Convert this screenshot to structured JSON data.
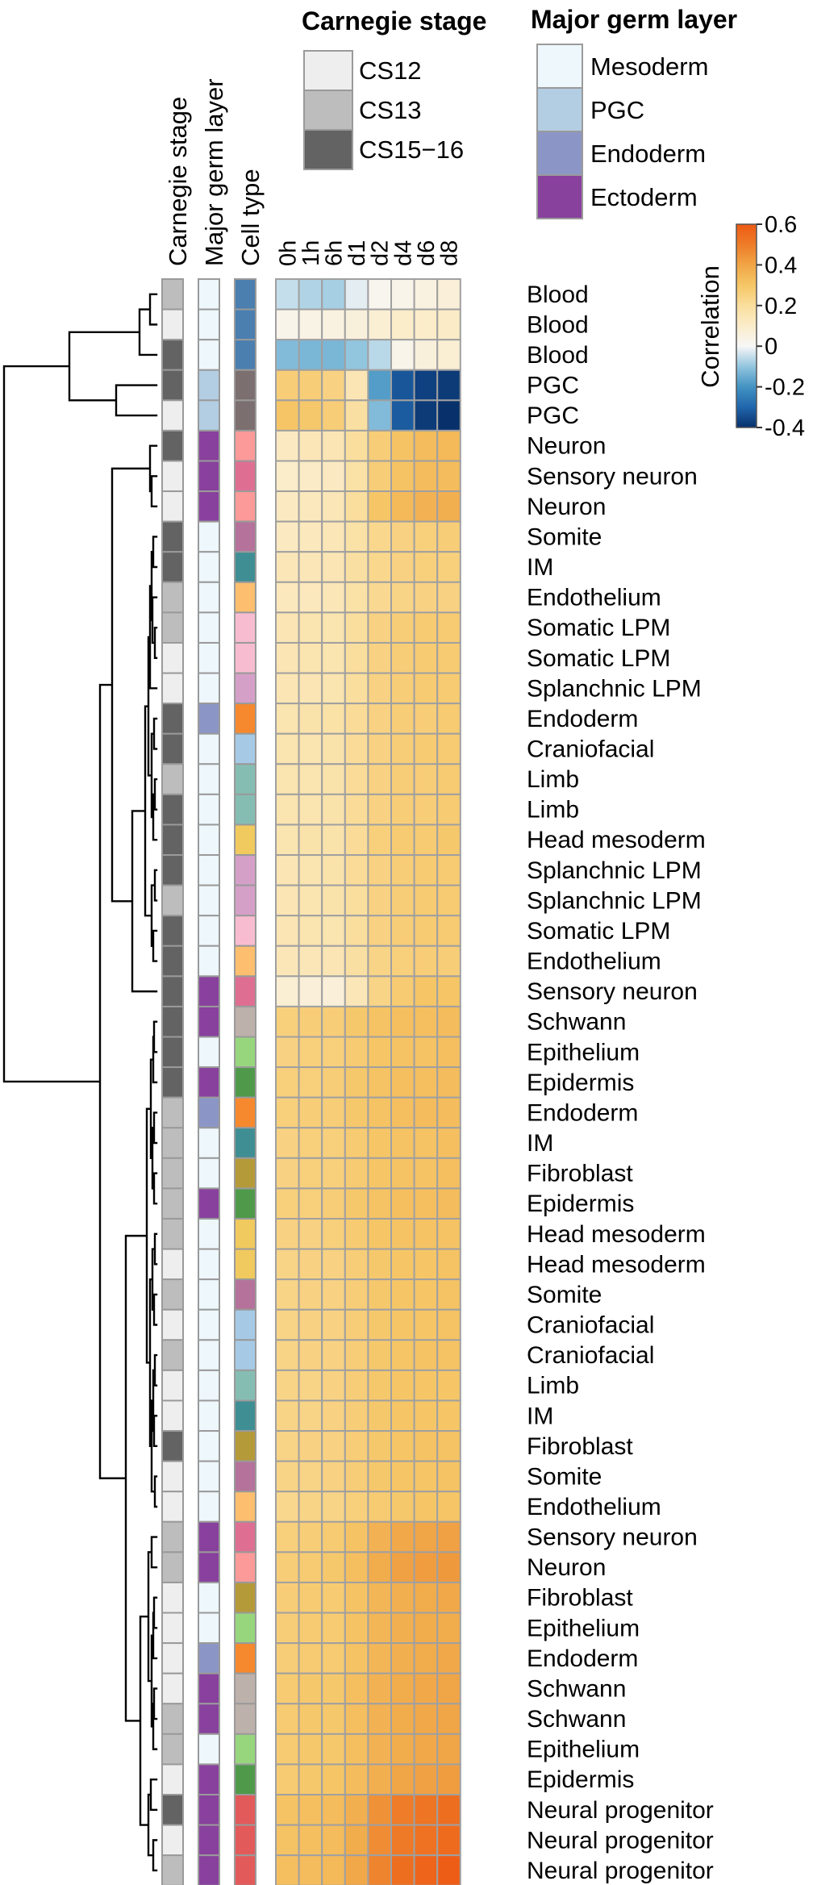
{
  "chart_data": {
    "type": "heatmap",
    "columns": [
      "0h",
      "1h",
      "6h",
      "d1",
      "d2",
      "d4",
      "d6",
      "d8"
    ],
    "annotation_headers": [
      "Carnegie stage",
      "Major germ layer",
      "Cell type"
    ],
    "legends": {
      "carnegie_stage": {
        "title": "Carnegie stage",
        "entries": [
          {
            "label": "CS12",
            "color": "#eeeeee"
          },
          {
            "label": "CS13",
            "color": "#bdbdbd"
          },
          {
            "label": "CS15−16",
            "color": "#636363"
          }
        ]
      },
      "germ_layer": {
        "title": "Major germ layer",
        "entries": [
          {
            "label": "Mesoderm",
            "color": "#eef7fb"
          },
          {
            "label": "PGC",
            "color": "#b3cde3"
          },
          {
            "label": "Endoderm",
            "color": "#8c96c6"
          },
          {
            "label": "Ectoderm",
            "color": "#88419d"
          }
        ]
      },
      "correlation": {
        "title": "Correlation",
        "range": [
          -0.4,
          0.6
        ],
        "ticks": [
          0.6,
          0.4,
          0.2,
          0,
          -0.2,
          -0.4
        ],
        "tick_labels": [
          "0.6",
          "0.4",
          "0.2",
          "0",
          "-0.2",
          "-0.4"
        ]
      }
    },
    "stage_colors": {
      "CS12": "#eeeeee",
      "CS13": "#bdbdbd",
      "CS15-16": "#636363"
    },
    "layer_colors": {
      "Mesoderm": "#eef7fb",
      "PGC": "#b3cde3",
      "Endoderm": "#8c96c6",
      "Ectoderm": "#88419d"
    },
    "celltype_colors": {
      "Blood": "#4a7fb0",
      "PGC": "#7c6f6f",
      "Neuron": "#fb9a99",
      "Sensory neuron": "#de6f93",
      "Somite": "#b5729b",
      "IM": "#3f8e93",
      "Endothelium": "#fdbf6f",
      "Somatic LPM": "#f8bcd0",
      "Splanchnic LPM": "#d5a0c7",
      "Endoderm": "#f6882d",
      "Craniofacial": "#a6cae6",
      "Limb": "#86bdb3",
      "Head mesoderm": "#f0c95f",
      "Schwann": "#bdb1ac",
      "Epithelium": "#98d67e",
      "Epidermis": "#4f9a4a",
      "Fibroblast": "#b59a3a",
      "Neural progenitor": "#e35a5a"
    },
    "rows": [
      {
        "label": "Blood",
        "stage": "CS13",
        "layer": "Mesoderm",
        "values": [
          -0.05,
          -0.07,
          -0.08,
          -0.02,
          0.02,
          0.03,
          0.05,
          0.07
        ]
      },
      {
        "label": "Blood",
        "stage": "CS12",
        "layer": "Mesoderm",
        "values": [
          0.03,
          0.04,
          0.05,
          0.06,
          0.08,
          0.1,
          0.1,
          0.11
        ]
      },
      {
        "label": "Blood",
        "stage": "CS15-16",
        "layer": "Mesoderm",
        "values": [
          -0.12,
          -0.13,
          -0.13,
          -0.1,
          -0.06,
          0.03,
          0.06,
          0.08
        ]
      },
      {
        "label": "PGC",
        "stage": "CS15-16",
        "layer": "PGC",
        "values": [
          0.27,
          0.27,
          0.25,
          0.15,
          -0.18,
          -0.33,
          -0.37,
          -0.38
        ]
      },
      {
        "label": "PGC",
        "stage": "CS12",
        "layer": "PGC",
        "values": [
          0.3,
          0.29,
          0.27,
          0.19,
          -0.12,
          -0.32,
          -0.38,
          -0.4
        ]
      },
      {
        "label": "Neuron",
        "stage": "CS15-16",
        "layer": "Ectoderm",
        "values": [
          0.12,
          0.14,
          0.15,
          0.2,
          0.27,
          0.31,
          0.33,
          0.34
        ]
      },
      {
        "label": "Sensory neuron",
        "stage": "CS12",
        "layer": "Ectoderm",
        "values": [
          0.1,
          0.11,
          0.12,
          0.18,
          0.27,
          0.31,
          0.33,
          0.33
        ]
      },
      {
        "label": "Neuron",
        "stage": "CS12",
        "layer": "Ectoderm",
        "values": [
          0.12,
          0.13,
          0.14,
          0.2,
          0.3,
          0.34,
          0.36,
          0.37
        ]
      },
      {
        "label": "Somite",
        "stage": "CS15-16",
        "layer": "Mesoderm",
        "values": [
          0.12,
          0.13,
          0.14,
          0.18,
          0.23,
          0.25,
          0.26,
          0.27
        ]
      },
      {
        "label": "IM",
        "stage": "CS15-16",
        "layer": "Mesoderm",
        "values": [
          0.14,
          0.14,
          0.15,
          0.19,
          0.23,
          0.25,
          0.26,
          0.26
        ]
      },
      {
        "label": "Endothelium",
        "stage": "CS13",
        "layer": "Mesoderm",
        "values": [
          0.13,
          0.13,
          0.14,
          0.18,
          0.22,
          0.24,
          0.25,
          0.25
        ]
      },
      {
        "label": "Somatic LPM",
        "stage": "CS13",
        "layer": "Mesoderm",
        "values": [
          0.15,
          0.16,
          0.16,
          0.2,
          0.25,
          0.27,
          0.28,
          0.28
        ]
      },
      {
        "label": "Somatic LPM",
        "stage": "CS12",
        "layer": "Mesoderm",
        "values": [
          0.15,
          0.16,
          0.16,
          0.2,
          0.25,
          0.27,
          0.28,
          0.28
        ]
      },
      {
        "label": "Splanchnic LPM",
        "stage": "CS12",
        "layer": "Mesoderm",
        "values": [
          0.15,
          0.15,
          0.16,
          0.2,
          0.25,
          0.27,
          0.28,
          0.28
        ]
      },
      {
        "label": "Endoderm",
        "stage": "CS15-16",
        "layer": "Endoderm",
        "values": [
          0.16,
          0.17,
          0.18,
          0.21,
          0.25,
          0.27,
          0.27,
          0.28
        ]
      },
      {
        "label": "Craniofacial",
        "stage": "CS15-16",
        "layer": "Mesoderm",
        "values": [
          0.16,
          0.16,
          0.17,
          0.21,
          0.25,
          0.27,
          0.28,
          0.28
        ]
      },
      {
        "label": "Limb",
        "stage": "CS13",
        "layer": "Mesoderm",
        "values": [
          0.16,
          0.16,
          0.17,
          0.21,
          0.25,
          0.27,
          0.27,
          0.28
        ]
      },
      {
        "label": "Limb",
        "stage": "CS15-16",
        "layer": "Mesoderm",
        "values": [
          0.16,
          0.16,
          0.17,
          0.21,
          0.25,
          0.27,
          0.27,
          0.28
        ]
      },
      {
        "label": "Head mesoderm",
        "stage": "CS15-16",
        "layer": "Mesoderm",
        "values": [
          0.16,
          0.17,
          0.17,
          0.21,
          0.26,
          0.28,
          0.28,
          0.29
        ]
      },
      {
        "label": "Splanchnic LPM",
        "stage": "CS15-16",
        "layer": "Mesoderm",
        "values": [
          0.15,
          0.16,
          0.17,
          0.21,
          0.25,
          0.27,
          0.28,
          0.28
        ]
      },
      {
        "label": "Splanchnic LPM",
        "stage": "CS13",
        "layer": "Mesoderm",
        "values": [
          0.15,
          0.16,
          0.17,
          0.2,
          0.25,
          0.27,
          0.28,
          0.28
        ]
      },
      {
        "label": "Somatic LPM",
        "stage": "CS15-16",
        "layer": "Mesoderm",
        "values": [
          0.15,
          0.16,
          0.16,
          0.2,
          0.25,
          0.27,
          0.28,
          0.28
        ]
      },
      {
        "label": "Endothelium",
        "stage": "CS15-16",
        "layer": "Mesoderm",
        "values": [
          0.14,
          0.14,
          0.15,
          0.19,
          0.24,
          0.26,
          0.27,
          0.27
        ]
      },
      {
        "label": "Sensory neuron",
        "stage": "CS15-16",
        "layer": "Ectoderm",
        "values": [
          0.08,
          0.07,
          0.07,
          0.14,
          0.24,
          0.28,
          0.3,
          0.3
        ]
      },
      {
        "label": "Schwann",
        "stage": "CS15-16",
        "layer": "Ectoderm",
        "values": [
          0.26,
          0.27,
          0.27,
          0.29,
          0.31,
          0.32,
          0.32,
          0.33
        ]
      },
      {
        "label": "Epithelium",
        "stage": "CS15-16",
        "layer": "Mesoderm",
        "values": [
          0.25,
          0.26,
          0.26,
          0.28,
          0.3,
          0.31,
          0.31,
          0.32
        ]
      },
      {
        "label": "Epidermis",
        "stage": "CS15-16",
        "layer": "Ectoderm",
        "values": [
          0.26,
          0.26,
          0.27,
          0.29,
          0.31,
          0.32,
          0.32,
          0.33
        ]
      },
      {
        "label": "Endoderm",
        "stage": "CS13",
        "layer": "Endoderm",
        "values": [
          0.26,
          0.27,
          0.27,
          0.29,
          0.31,
          0.32,
          0.33,
          0.33
        ]
      },
      {
        "label": "IM",
        "stage": "CS13",
        "layer": "Mesoderm",
        "values": [
          0.25,
          0.26,
          0.26,
          0.28,
          0.3,
          0.31,
          0.31,
          0.32
        ]
      },
      {
        "label": "Fibroblast",
        "stage": "CS13",
        "layer": "Mesoderm",
        "values": [
          0.25,
          0.26,
          0.26,
          0.28,
          0.3,
          0.31,
          0.31,
          0.32
        ]
      },
      {
        "label": "Epidermis",
        "stage": "CS13",
        "layer": "Ectoderm",
        "values": [
          0.26,
          0.26,
          0.27,
          0.29,
          0.31,
          0.32,
          0.32,
          0.33
        ]
      },
      {
        "label": "Head mesoderm",
        "stage": "CS13",
        "layer": "Mesoderm",
        "values": [
          0.25,
          0.25,
          0.26,
          0.28,
          0.3,
          0.31,
          0.31,
          0.31
        ]
      },
      {
        "label": "Head mesoderm",
        "stage": "CS12",
        "layer": "Mesoderm",
        "values": [
          0.24,
          0.25,
          0.25,
          0.27,
          0.29,
          0.3,
          0.3,
          0.31
        ]
      },
      {
        "label": "Somite",
        "stage": "CS13",
        "layer": "Mesoderm",
        "values": [
          0.24,
          0.25,
          0.25,
          0.27,
          0.29,
          0.3,
          0.3,
          0.31
        ]
      },
      {
        "label": "Craniofacial",
        "stage": "CS12",
        "layer": "Mesoderm",
        "values": [
          0.24,
          0.25,
          0.25,
          0.27,
          0.29,
          0.3,
          0.3,
          0.31
        ]
      },
      {
        "label": "Craniofacial",
        "stage": "CS13",
        "layer": "Mesoderm",
        "values": [
          0.24,
          0.25,
          0.25,
          0.27,
          0.29,
          0.3,
          0.31,
          0.31
        ]
      },
      {
        "label": "Limb",
        "stage": "CS12",
        "layer": "Mesoderm",
        "values": [
          0.24,
          0.24,
          0.25,
          0.27,
          0.29,
          0.3,
          0.3,
          0.3
        ]
      },
      {
        "label": "IM",
        "stage": "CS12",
        "layer": "Mesoderm",
        "values": [
          0.24,
          0.24,
          0.25,
          0.27,
          0.29,
          0.3,
          0.3,
          0.3
        ]
      },
      {
        "label": "Fibroblast",
        "stage": "CS15-16",
        "layer": "Mesoderm",
        "values": [
          0.24,
          0.25,
          0.25,
          0.27,
          0.29,
          0.3,
          0.31,
          0.31
        ]
      },
      {
        "label": "Somite",
        "stage": "CS12",
        "layer": "Mesoderm",
        "values": [
          0.24,
          0.24,
          0.25,
          0.27,
          0.29,
          0.3,
          0.3,
          0.31
        ]
      },
      {
        "label": "Endothelium",
        "stage": "CS12",
        "layer": "Mesoderm",
        "values": [
          0.23,
          0.24,
          0.24,
          0.26,
          0.28,
          0.29,
          0.3,
          0.3
        ]
      },
      {
        "label": "Sensory neuron",
        "stage": "CS13",
        "layer": "Ectoderm",
        "values": [
          0.26,
          0.27,
          0.28,
          0.31,
          0.36,
          0.39,
          0.4,
          0.41
        ]
      },
      {
        "label": "Neuron",
        "stage": "CS13",
        "layer": "Ectoderm",
        "values": [
          0.27,
          0.28,
          0.29,
          0.32,
          0.38,
          0.41,
          0.42,
          0.43
        ]
      },
      {
        "label": "Fibroblast",
        "stage": "CS12",
        "layer": "Mesoderm",
        "values": [
          0.27,
          0.28,
          0.28,
          0.31,
          0.35,
          0.37,
          0.38,
          0.39
        ]
      },
      {
        "label": "Epithelium",
        "stage": "CS12",
        "layer": "Mesoderm",
        "values": [
          0.27,
          0.28,
          0.28,
          0.31,
          0.35,
          0.37,
          0.38,
          0.38
        ]
      },
      {
        "label": "Endoderm",
        "stage": "CS12",
        "layer": "Endoderm",
        "values": [
          0.27,
          0.28,
          0.28,
          0.31,
          0.35,
          0.37,
          0.38,
          0.39
        ]
      },
      {
        "label": "Schwann",
        "stage": "CS12",
        "layer": "Ectoderm",
        "values": [
          0.28,
          0.29,
          0.29,
          0.32,
          0.36,
          0.38,
          0.39,
          0.4
        ]
      },
      {
        "label": "Schwann",
        "stage": "CS13",
        "layer": "Ectoderm",
        "values": [
          0.28,
          0.29,
          0.29,
          0.32,
          0.36,
          0.38,
          0.39,
          0.4
        ]
      },
      {
        "label": "Epithelium",
        "stage": "CS13",
        "layer": "Mesoderm",
        "values": [
          0.28,
          0.29,
          0.29,
          0.32,
          0.36,
          0.38,
          0.39,
          0.4
        ]
      },
      {
        "label": "Epidermis",
        "stage": "CS12",
        "layer": "Ectoderm",
        "values": [
          0.28,
          0.29,
          0.3,
          0.33,
          0.37,
          0.4,
          0.41,
          0.42
        ]
      },
      {
        "label": "Neural progenitor",
        "stage": "CS15-16",
        "layer": "Ectoderm",
        "values": [
          0.31,
          0.32,
          0.33,
          0.37,
          0.45,
          0.5,
          0.52,
          0.54
        ]
      },
      {
        "label": "Neural progenitor",
        "stage": "CS12",
        "layer": "Ectoderm",
        "values": [
          0.31,
          0.32,
          0.33,
          0.38,
          0.46,
          0.51,
          0.53,
          0.55
        ]
      },
      {
        "label": "Neural progenitor",
        "stage": "CS13",
        "layer": "Ectoderm",
        "values": [
          0.32,
          0.33,
          0.34,
          0.39,
          0.48,
          0.54,
          0.57,
          0.59
        ]
      }
    ]
  }
}
